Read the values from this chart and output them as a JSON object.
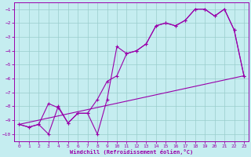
{
  "xlabel": "Windchill (Refroidissement éolien,°C)",
  "xlim": [
    -0.5,
    23.5
  ],
  "ylim": [
    -10.5,
    -0.5
  ],
  "yticks": [
    -10,
    -9,
    -8,
    -7,
    -6,
    -5,
    -4,
    -3,
    -2,
    -1
  ],
  "xticks": [
    0,
    1,
    2,
    3,
    4,
    5,
    6,
    7,
    8,
    9,
    10,
    11,
    12,
    13,
    14,
    15,
    16,
    17,
    18,
    19,
    20,
    21,
    22,
    23
  ],
  "bg_color": "#c5edf0",
  "line_color": "#9900aa",
  "grid_color": "#99cccc",
  "series1_x": [
    0,
    1,
    2,
    3,
    4,
    5,
    6,
    7,
    8,
    9,
    10,
    11,
    12,
    13,
    14,
    15,
    16,
    17,
    18,
    19,
    20,
    21,
    22,
    23
  ],
  "series1_y": [
    -9.3,
    -9.5,
    -9.3,
    -10.0,
    -8.0,
    -9.2,
    -8.5,
    -8.5,
    -10.0,
    -7.5,
    -3.7,
    -4.2,
    -4.0,
    -3.5,
    -2.2,
    -2.0,
    -2.2,
    -1.8,
    -1.0,
    -1.0,
    -1.5,
    -1.0,
    -2.5,
    -5.8
  ],
  "series2_x": [
    0,
    1,
    2,
    3,
    4,
    5,
    6,
    7,
    8,
    9,
    10,
    11,
    12,
    13,
    14,
    15,
    16,
    17,
    18,
    19,
    20,
    21,
    22,
    23
  ],
  "series2_y": [
    -9.3,
    -9.5,
    -9.3,
    -7.8,
    -8.1,
    -9.2,
    -8.5,
    -8.5,
    -7.5,
    -6.2,
    -5.8,
    -4.2,
    -4.0,
    -3.5,
    -2.2,
    -2.0,
    -2.2,
    -1.8,
    -1.0,
    -1.0,
    -1.5,
    -1.0,
    -2.5,
    -5.8
  ],
  "series3_x": [
    0,
    23
  ],
  "series3_y": [
    -9.3,
    -5.8
  ]
}
